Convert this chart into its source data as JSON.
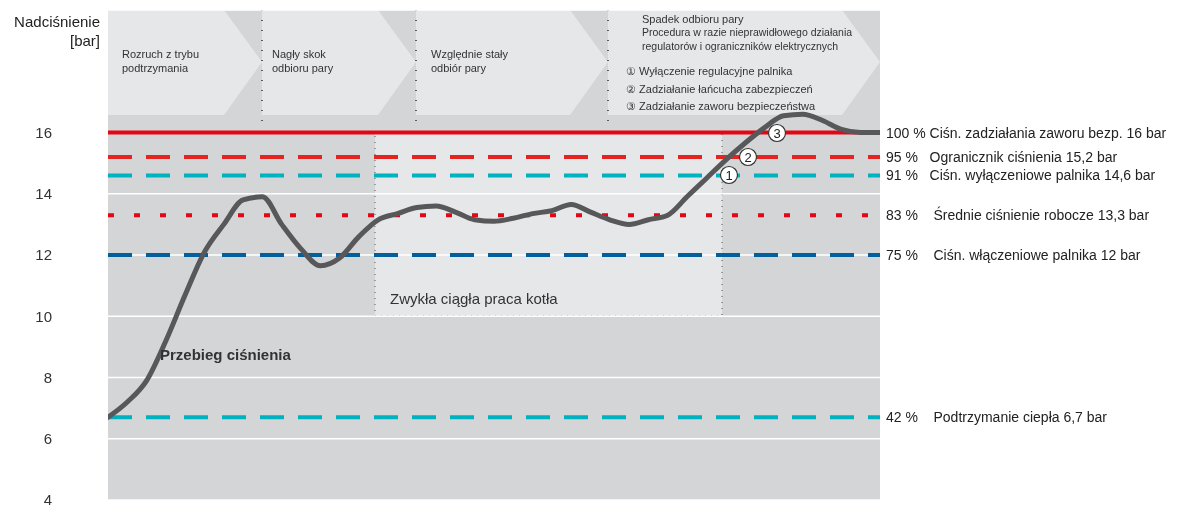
{
  "chart_data": {
    "type": "line",
    "ylabel": "Nadciśnienie [bar]",
    "categories": [
      null,
      null,
      null,
      null,
      null,
      null,
      null,
      null,
      null,
      null,
      null,
      null,
      null,
      null,
      null,
      null,
      null,
      null,
      null,
      null,
      null,
      null,
      null,
      null,
      null,
      null,
      null,
      null,
      null,
      null,
      null,
      null,
      null,
      null,
      null,
      null,
      null,
      null,
      null,
      null,
      null
    ],
    "series": [
      {
        "color": "#58585a",
        "values": [
          6.7,
          7.2,
          7.9,
          9.2,
          10.7,
          12.1,
          13.0,
          13.8,
          13.9,
          13.0,
          12.2,
          11.65,
          11.9,
          12.6,
          13.15,
          13.35,
          13.55,
          13.6,
          13.4,
          13.15,
          13.1,
          13.2,
          13.35,
          13.45,
          13.65,
          13.4,
          13.15,
          13.0,
          13.15,
          13.3,
          13.9,
          14.5,
          15.1,
          15.65,
          16.15,
          16.55,
          16.6,
          16.4,
          16.1,
          16.0,
          16.0
        ]
      }
    ],
    "ylim": [
      4,
      20
    ],
    "yticks": [
      4,
      6,
      8,
      10,
      12,
      14,
      16
    ],
    "grid": "y",
    "tick_labels": "y",
    "ref_lines": [
      {
        "axis": "y",
        "value": 16,
        "label": "100 % Ciśn. zadziałania zaworu bezp. 16 bar",
        "color": "#e30613",
        "line_style": "solid"
      },
      {
        "axis": "y",
        "value": 15.2,
        "label": "95 %   Ogranicznik ciśnienia 15,2 bar",
        "color": "#e52421",
        "line_style": "dashed"
      },
      {
        "axis": "y",
        "value": 14.6,
        "label": "91 %   Ciśn. wyłączeniowe palnika 14,6 bar",
        "color": "#00b2bf",
        "line_style": "dashed"
      },
      {
        "axis": "y",
        "value": 13.3,
        "label": "83 %    Średnie ciśnienie robocze 13,3 bar",
        "color": "#e30613",
        "line_style": "dotted"
      },
      {
        "axis": "y",
        "value": 12,
        "label": "75 %    Ciśn. włączeniowe palnika 12 bar",
        "color": "#005f9c",
        "line_style": "dashed"
      },
      {
        "axis": "y",
        "value": 6.7,
        "label": "42 %    Podtrzymanie ciepła 6,7 bar",
        "color": "#00b2bf",
        "line_style": "dashed"
      }
    ],
    "annotations": [
      "Rozruch z trybu podtrzymania",
      "Nagły skok odbioru pary",
      "Względnie stały odbiór pary",
      "Spadek odbioru pary",
      "Procedura w razie nieprawidłowego działania regulatorów i ograniczników elektrycznych",
      "① Wyłączenie regulacyjne palnika",
      "② Zadziałanie łańcucha zabezpieczeń",
      "③ Zadziałanie zaworu bezpieczeństwa",
      "Zwykła ciągła praca kotła",
      "Przebieg ciśnienia",
      {
        "text": "1",
        "y": 14.6
      },
      {
        "text": "2",
        "y": 15.2
      },
      {
        "text": "3",
        "y": 16
      }
    ]
  }
}
